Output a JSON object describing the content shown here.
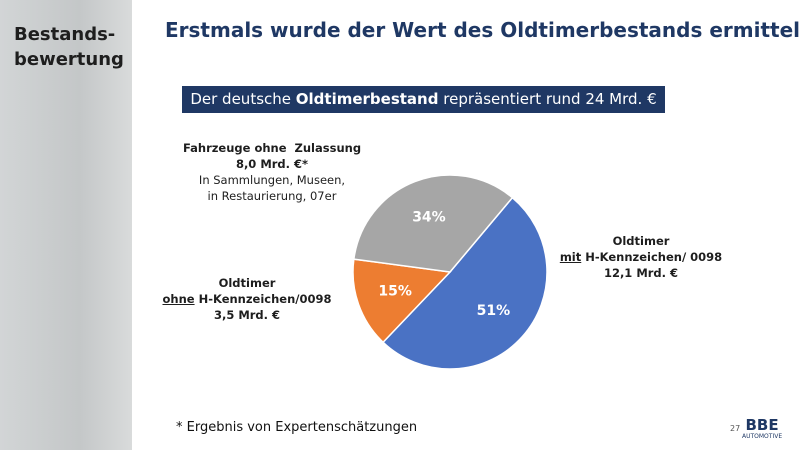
{
  "sidebar": {
    "lines": [
      "Bestands-",
      "bewertung"
    ]
  },
  "chart_data": {
    "type": "pie",
    "title": "Erstmals wurde der Wert des Oldtimerbestands ermittelt",
    "subtitle": [
      "Der deutsche",
      "Oldtimerbestand",
      "repräsentiert rund 24 Mrd. €"
    ],
    "values": [
      51,
      15,
      34
    ],
    "value_labels": [
      "51%",
      "15%",
      "34%"
    ],
    "colors": [
      "#4a72c4",
      "#ed7d31",
      "#a6a6a6"
    ],
    "slice_labels": [
      [
        "Oldtimer",
        [
          "mit",
          "H-Kennzeichen/ 0098"
        ],
        "12,1 Mrd. €"
      ],
      [
        "Oldtimer",
        [
          "ohne",
          "H-Kennzeichen/0098"
        ],
        "3,5 Mrd. €"
      ],
      [
        "Fahrzeuge ohne  Zulassung",
        "8,0 Mrd. €*",
        "In Sammlungen, Museen,",
        "in Restaurierung, 07er"
      ]
    ]
  },
  "footnote": "* Ergebnis von Expertenschätzungen",
  "page_number": "27",
  "logo": [
    "BBE",
    "AUTOMOTIVE"
  ]
}
